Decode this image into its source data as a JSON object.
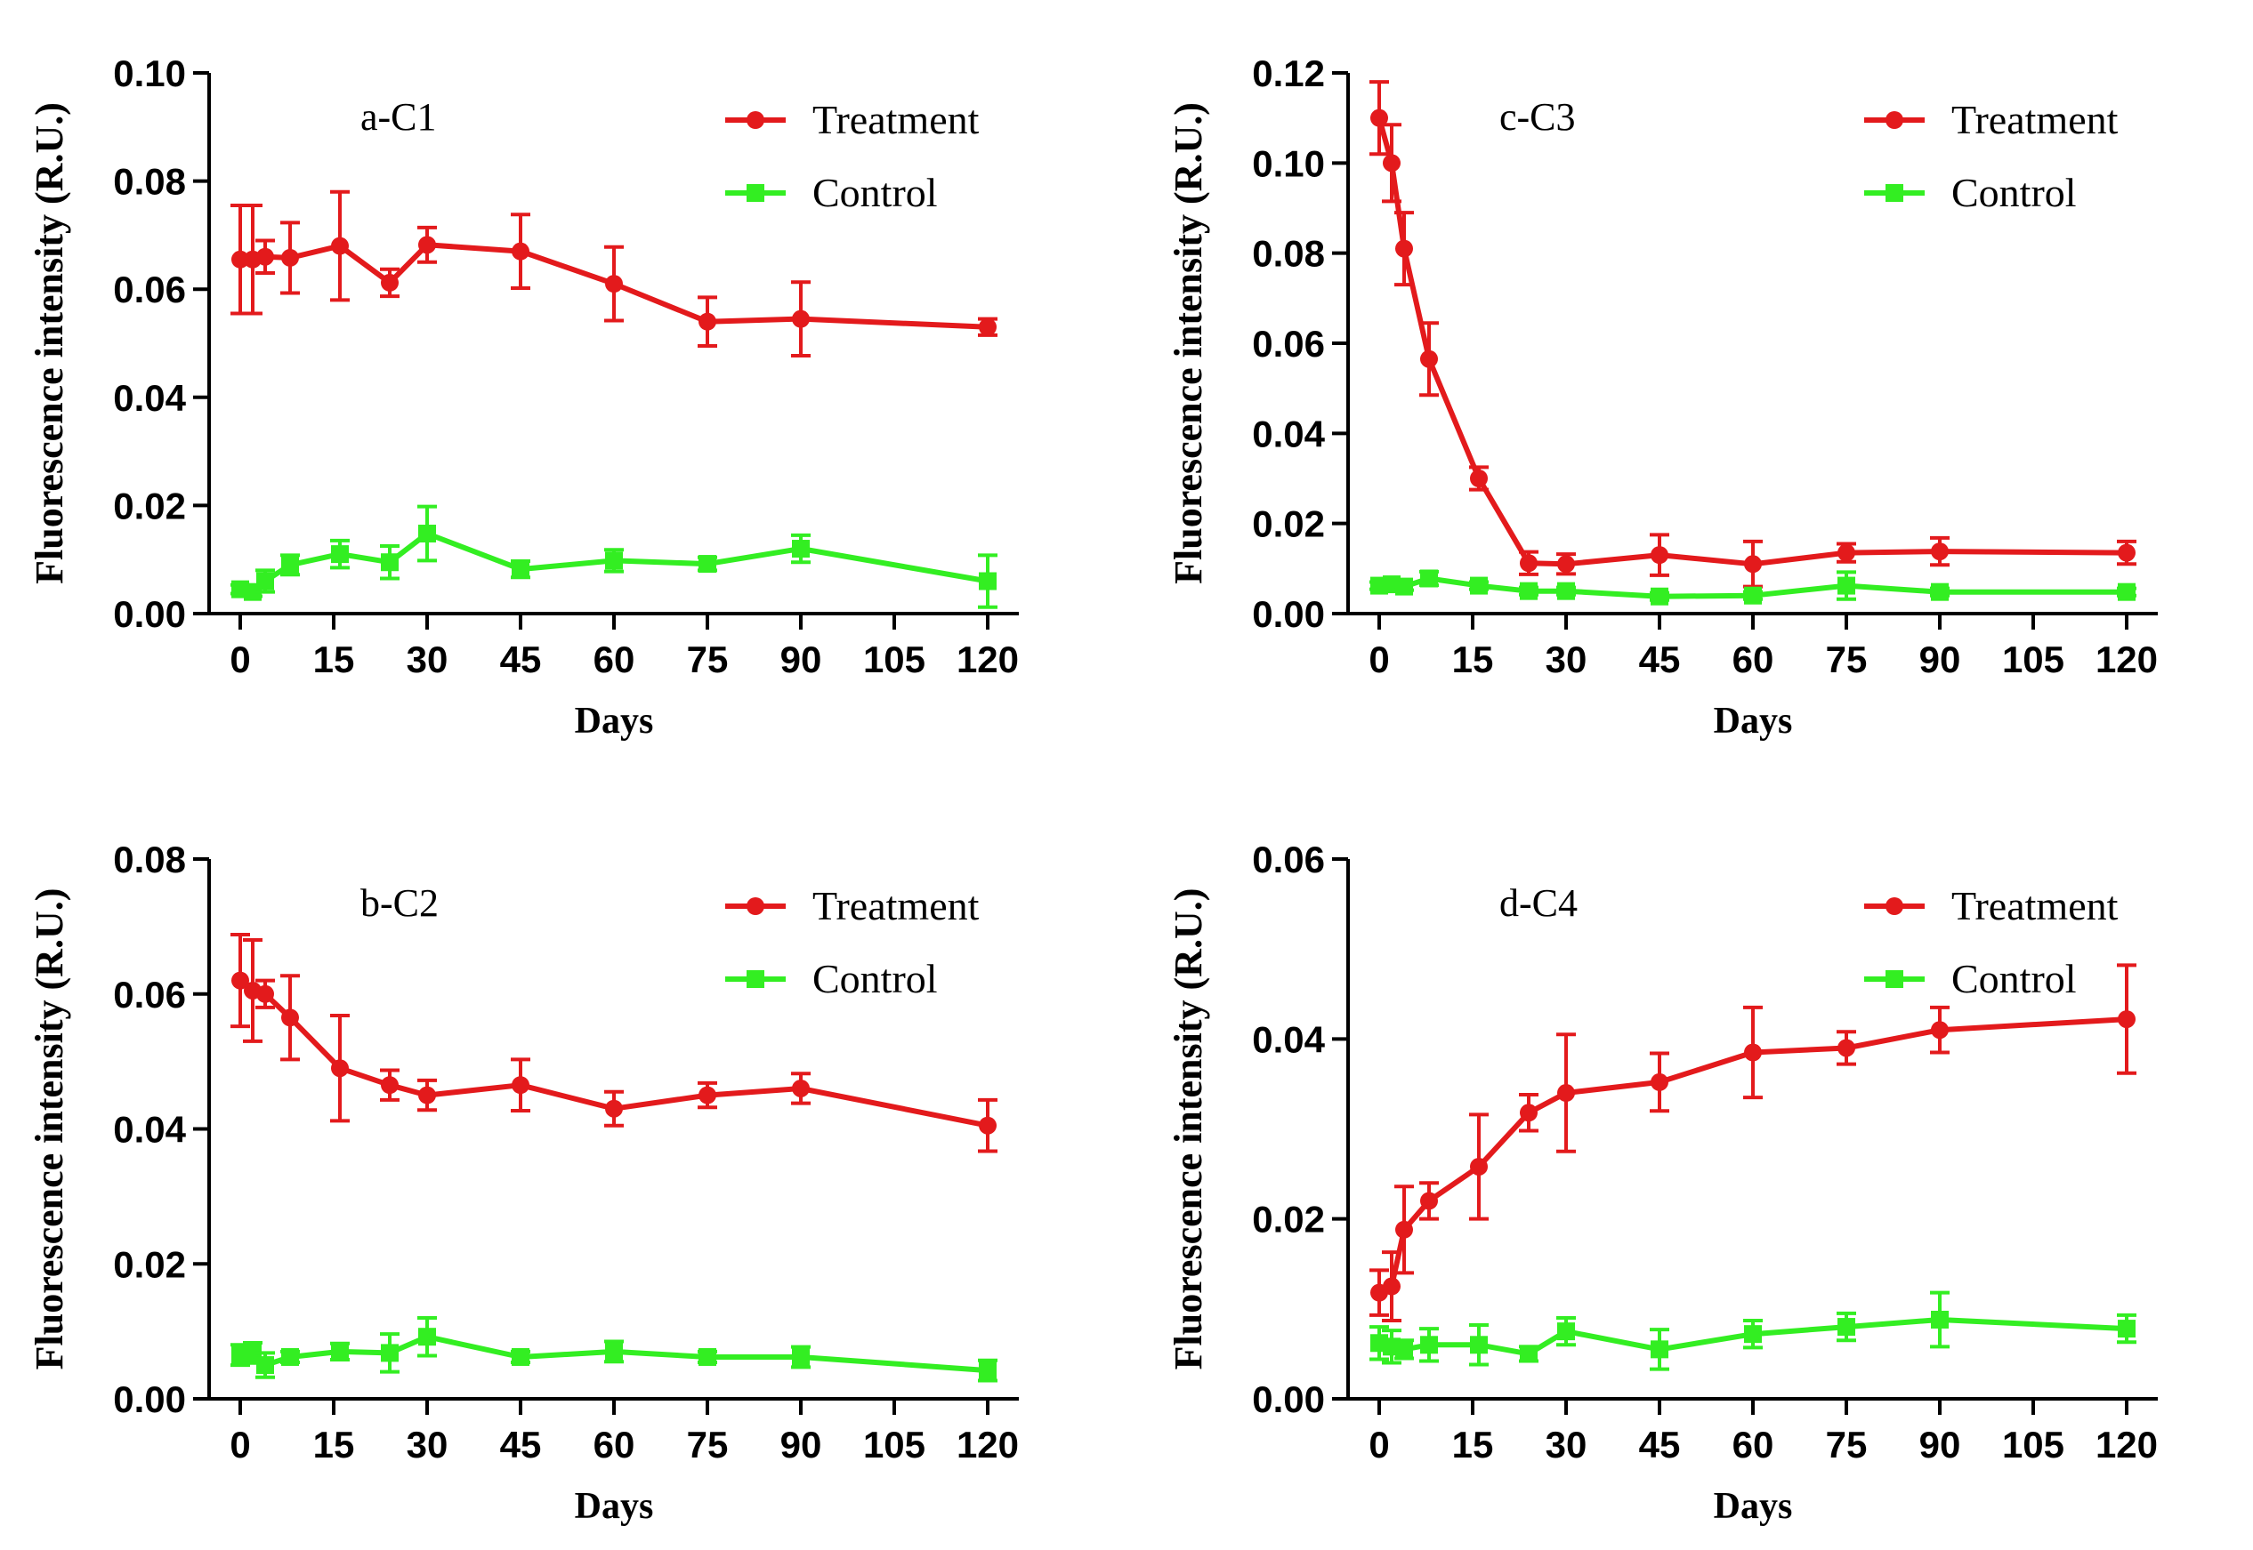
{
  "chart_data": [
    {
      "type": "line",
      "title": "a-C1",
      "xlabel": "Days",
      "ylabel": "Fluorescence intensity (R.U.)",
      "xlim": [
        -5,
        125
      ],
      "ylim": [
        0,
        0.1
      ],
      "xticks": [
        0,
        15,
        30,
        45,
        60,
        75,
        90,
        105,
        120
      ],
      "xtick_labels": [
        "0",
        "15",
        "30",
        "45",
        "60",
        "75",
        "90",
        "105",
        "120"
      ],
      "yticks": [
        0,
        0.02,
        0.04,
        0.06,
        0.08,
        0.1
      ],
      "ytick_labels": [
        "0.00",
        "0.02",
        "0.04",
        "0.06",
        "0.08",
        "0.10"
      ],
      "legend_position": "top-right",
      "series": [
        {
          "name": "Treatment",
          "color": "#e31a1c",
          "marker": "circle",
          "x": [
            0,
            2,
            4,
            8,
            16,
            24,
            30,
            45,
            60,
            75,
            90,
            120
          ],
          "y": [
            0.0655,
            0.0655,
            0.066,
            0.0658,
            0.068,
            0.0612,
            0.0682,
            0.067,
            0.061,
            0.054,
            0.0545,
            0.053
          ],
          "err": [
            0.01,
            0.01,
            0.003,
            0.0065,
            0.01,
            0.0025,
            0.0032,
            0.0068,
            0.0068,
            0.0045,
            0.0068,
            0.0015
          ]
        },
        {
          "name": "Control",
          "color": "#33ee22",
          "marker": "square",
          "x": [
            0,
            2,
            4,
            8,
            16,
            24,
            30,
            45,
            60,
            75,
            90,
            120
          ],
          "y": [
            0.0045,
            0.004,
            0.006,
            0.009,
            0.011,
            0.0095,
            0.0148,
            0.0082,
            0.0098,
            0.0092,
            0.012,
            0.006
          ],
          "err": [
            0.0008,
            0.0008,
            0.002,
            0.0018,
            0.0025,
            0.003,
            0.005,
            0.0015,
            0.002,
            0.0012,
            0.0025,
            0.0048
          ]
        }
      ]
    },
    {
      "type": "line",
      "title": "c-C3",
      "xlabel": "Days",
      "ylabel": "Fluorescence intensity (R.U.)",
      "xlim": [
        -5,
        125
      ],
      "ylim": [
        0,
        0.12
      ],
      "xticks": [
        0,
        15,
        30,
        45,
        60,
        75,
        90,
        105,
        120
      ],
      "xtick_labels": [
        "0",
        "15",
        "30",
        "45",
        "60",
        "75",
        "90",
        "105",
        "120"
      ],
      "yticks": [
        0,
        0.02,
        0.04,
        0.06,
        0.08,
        0.1,
        0.12
      ],
      "ytick_labels": [
        "0.00",
        "0.02",
        "0.04",
        "0.06",
        "0.08",
        "0.10",
        "0.12"
      ],
      "legend_position": "top-right",
      "series": [
        {
          "name": "Treatment",
          "color": "#e31a1c",
          "marker": "circle",
          "x": [
            0,
            2,
            4,
            8,
            16,
            24,
            30,
            45,
            60,
            75,
            90,
            120
          ],
          "y": [
            0.11,
            0.1,
            0.081,
            0.0565,
            0.03,
            0.0112,
            0.011,
            0.013,
            0.011,
            0.0135,
            0.0138,
            0.0135
          ],
          "err": [
            0.008,
            0.0085,
            0.008,
            0.008,
            0.0025,
            0.0025,
            0.0022,
            0.0045,
            0.005,
            0.002,
            0.003,
            0.0025
          ]
        },
        {
          "name": "Control",
          "color": "#33ee22",
          "marker": "square",
          "x": [
            0,
            2,
            4,
            8,
            16,
            24,
            30,
            45,
            60,
            75,
            90,
            120
          ],
          "y": [
            0.0062,
            0.0065,
            0.006,
            0.0078,
            0.0062,
            0.005,
            0.005,
            0.0038,
            0.004,
            0.0062,
            0.0048,
            0.0048
          ],
          "err": [
            0.0008,
            0.0008,
            0.0008,
            0.0015,
            0.0008,
            0.0008,
            0.0008,
            0.0008,
            0.0008,
            0.003,
            0.0008,
            0.0008
          ]
        }
      ]
    },
    {
      "type": "line",
      "title": "b-C2",
      "xlabel": "Days",
      "ylabel": "Fluorescence intensity (R.U.)",
      "xlim": [
        -5,
        125
      ],
      "ylim": [
        0,
        0.08
      ],
      "xticks": [
        0,
        15,
        30,
        45,
        60,
        75,
        90,
        105,
        120
      ],
      "xtick_labels": [
        "0",
        "15",
        "30",
        "45",
        "60",
        "75",
        "90",
        "105",
        "120"
      ],
      "yticks": [
        0,
        0.02,
        0.04,
        0.06,
        0.08
      ],
      "ytick_labels": [
        "0.00",
        "0.02",
        "0.04",
        "0.06",
        "0.08"
      ],
      "legend_position": "top-right",
      "series": [
        {
          "name": "Treatment",
          "color": "#e31a1c",
          "marker": "circle",
          "x": [
            0,
            2,
            4,
            8,
            16,
            24,
            30,
            45,
            60,
            75,
            90,
            120
          ],
          "y": [
            0.062,
            0.0605,
            0.06,
            0.0565,
            0.049,
            0.0465,
            0.045,
            0.0465,
            0.043,
            0.045,
            0.046,
            0.0405
          ],
          "err": [
            0.0068,
            0.0075,
            0.002,
            0.0062,
            0.0078,
            0.0022,
            0.0022,
            0.0038,
            0.0025,
            0.0018,
            0.0022,
            0.0038
          ]
        },
        {
          "name": "Control",
          "color": "#33ee22",
          "marker": "square",
          "x": [
            0,
            2,
            4,
            8,
            16,
            24,
            30,
            45,
            60,
            75,
            90,
            120
          ],
          "y": [
            0.0065,
            0.0068,
            0.005,
            0.0062,
            0.007,
            0.0068,
            0.0092,
            0.0062,
            0.007,
            0.0062,
            0.0062,
            0.0042
          ],
          "err": [
            0.0015,
            0.0015,
            0.0018,
            0.0008,
            0.0012,
            0.0028,
            0.0028,
            0.0008,
            0.0015,
            0.0008,
            0.0015,
            0.0015
          ]
        }
      ]
    },
    {
      "type": "line",
      "title": "d-C4",
      "xlabel": "Days",
      "ylabel": "Fluorescence intensity (R.U.)",
      "xlim": [
        -5,
        125
      ],
      "ylim": [
        0,
        0.06
      ],
      "xticks": [
        0,
        15,
        30,
        45,
        60,
        75,
        90,
        105,
        120
      ],
      "xtick_labels": [
        "0",
        "15",
        "30",
        "45",
        "60",
        "75",
        "90",
        "105",
        "120"
      ],
      "yticks": [
        0,
        0.02,
        0.04,
        0.06
      ],
      "ytick_labels": [
        "0.00",
        "0.02",
        "0.04",
        "0.06"
      ],
      "legend_position": "top-right",
      "series": [
        {
          "name": "Treatment",
          "color": "#e31a1c",
          "marker": "circle",
          "x": [
            0,
            2,
            4,
            8,
            16,
            24,
            30,
            45,
            60,
            75,
            90,
            120
          ],
          "y": [
            0.0118,
            0.0125,
            0.0188,
            0.022,
            0.0258,
            0.0318,
            0.034,
            0.0352,
            0.0385,
            0.039,
            0.041,
            0.0422
          ],
          "err": [
            0.0025,
            0.0038,
            0.0048,
            0.002,
            0.0058,
            0.002,
            0.0065,
            0.0032,
            0.005,
            0.0018,
            0.0025,
            0.006
          ]
        },
        {
          "name": "Control",
          "color": "#33ee22",
          "marker": "square",
          "x": [
            0,
            2,
            4,
            8,
            16,
            24,
            30,
            45,
            60,
            75,
            90,
            120
          ],
          "y": [
            0.0062,
            0.0058,
            0.0055,
            0.006,
            0.006,
            0.005,
            0.0075,
            0.0055,
            0.0072,
            0.008,
            0.0088,
            0.0078
          ],
          "err": [
            0.0018,
            0.0018,
            0.001,
            0.0018,
            0.0022,
            0.0008,
            0.0015,
            0.0022,
            0.0015,
            0.0015,
            0.003,
            0.0015
          ]
        }
      ]
    }
  ]
}
